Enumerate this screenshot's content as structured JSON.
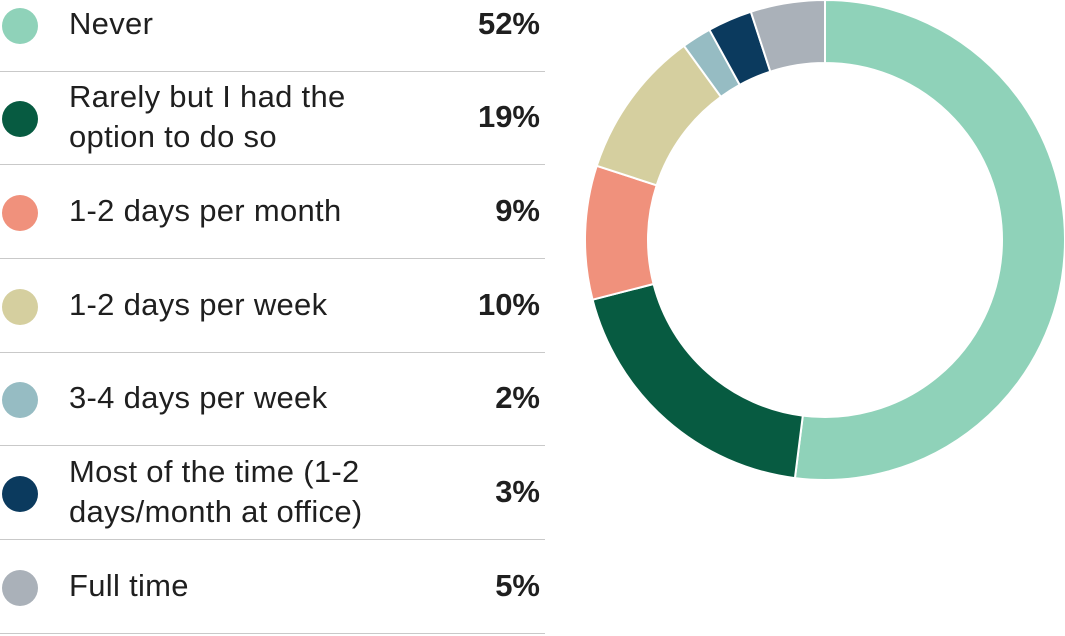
{
  "chart_data": {
    "type": "pie",
    "style": "donut",
    "categories": [
      "Never",
      "Rarely but I had the option to do so",
      "1-2 days per month",
      "1-2 days per week",
      "3-4 days per week",
      "Most of the time (1-2 days/month at office)",
      "Full time"
    ],
    "values": [
      52,
      19,
      9,
      10,
      2,
      3,
      5
    ],
    "value_labels": [
      "52%",
      "19%",
      "9%",
      "10%",
      "2%",
      "3%",
      "5%"
    ],
    "colors": [
      "#8fd2b9",
      "#075b41",
      "#f0917c",
      "#d5cf9f",
      "#96bcc3",
      "#0b3a5e",
      "#aab1b9"
    ],
    "legend": [
      {
        "label_lines": [
          "Never"
        ],
        "value": "52%"
      },
      {
        "label_lines": [
          "Rarely but I had the",
          "option to do so"
        ],
        "value": "19%"
      },
      {
        "label_lines": [
          "1-2 days per month"
        ],
        "value": "9%"
      },
      {
        "label_lines": [
          "1-2 days per week"
        ],
        "value": "10%"
      },
      {
        "label_lines": [
          "3-4 days per week"
        ],
        "value": "2%"
      },
      {
        "label_lines": [
          "Most of the time (1-2",
          "days/month at office)"
        ],
        "value": "3%"
      },
      {
        "label_lines": [
          "Full time"
        ],
        "value": "5%"
      }
    ],
    "legend_placement": "left",
    "title": "",
    "xlabel": "",
    "ylabel": ""
  }
}
